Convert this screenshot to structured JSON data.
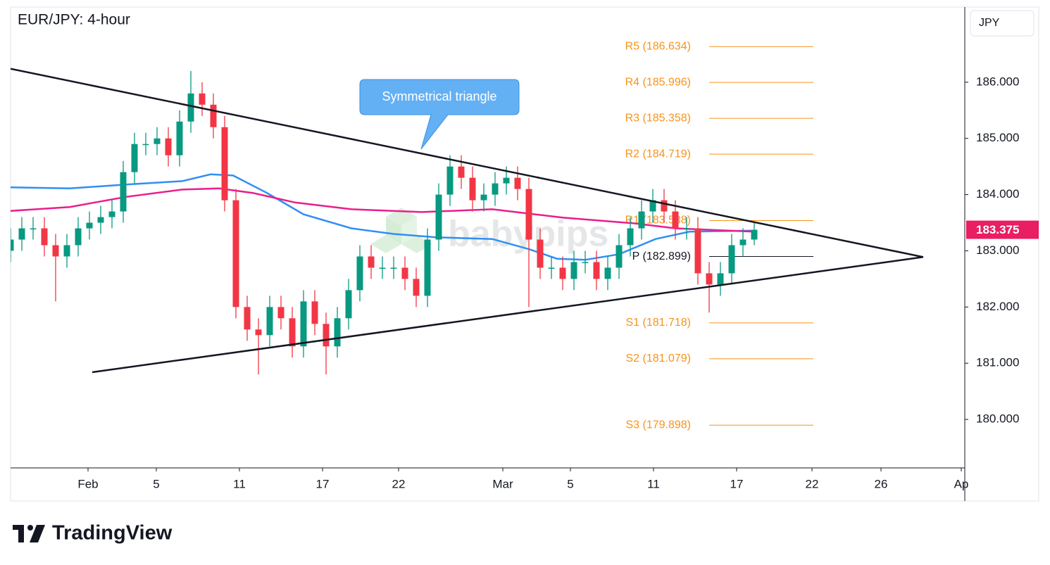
{
  "chart_data": {
    "type": "candlestick",
    "title": "EUR/JPY: 4-hour",
    "currency": "JPY",
    "watermark": "babypips",
    "brand": "TradingView",
    "annotation": "Symmetrical triangle",
    "xlim": [
      0,
      338.75
    ],
    "ylim": [
      179.1375,
      187.3375
    ],
    "xticks": [
      {
        "value": 27.5,
        "label": "Feb"
      },
      {
        "value": 51.75,
        "label": "5"
      },
      {
        "value": 81.25,
        "label": "11"
      },
      {
        "value": 110.75,
        "label": "17"
      },
      {
        "value": 137.75,
        "label": "22"
      },
      {
        "value": 174.75,
        "label": "Mar"
      },
      {
        "value": 198.75,
        "label": "5"
      },
      {
        "value": 228.25,
        "label": "11"
      },
      {
        "value": 257.75,
        "label": "17"
      },
      {
        "value": 284.5,
        "label": "22"
      },
      {
        "value": 309,
        "label": "26"
      },
      {
        "value": 337.5,
        "label": "Ap"
      }
    ],
    "yticks": [
      {
        "value": 180,
        "label": "180.000"
      },
      {
        "value": 181,
        "label": "181.000"
      },
      {
        "value": 182,
        "label": "182.000"
      },
      {
        "value": 183,
        "label": "183.000"
      },
      {
        "value": 184,
        "label": "184.000"
      },
      {
        "value": 185,
        "label": "185.000"
      },
      {
        "value": 186,
        "label": "186.000"
      }
    ],
    "up_color": "#089981",
    "down_color": "#f23645",
    "x": [
      0,
      4,
      8,
      12,
      16,
      20,
      24,
      28,
      32,
      36,
      40,
      44,
      48,
      52,
      56,
      60,
      64,
      68,
      72,
      76,
      80,
      84,
      88,
      92,
      96,
      100,
      104,
      108,
      112,
      116,
      120,
      124,
      128,
      132,
      136,
      140,
      144,
      148,
      152,
      156,
      160,
      164,
      168,
      172,
      176,
      180,
      184,
      188,
      192,
      196,
      200,
      204,
      208,
      212,
      216,
      220,
      224,
      228,
      232,
      236,
      240,
      244,
      248,
      252,
      256,
      260,
      264
    ],
    "open": [
      183.0,
      183.2,
      183.4,
      183.4,
      183.1,
      182.9,
      183.1,
      183.4,
      183.5,
      183.6,
      183.7,
      184.4,
      184.9,
      184.9,
      185.0,
      184.7,
      185.3,
      185.8,
      185.6,
      185.2,
      183.9,
      182.0,
      181.6,
      181.5,
      182.0,
      181.8,
      181.3,
      182.1,
      181.7,
      181.3,
      181.8,
      182.3,
      182.9,
      182.7,
      182.7,
      182.7,
      182.5,
      182.2,
      183.2,
      184.0,
      184.5,
      184.3,
      183.9,
      184.0,
      184.2,
      184.3,
      184.1,
      183.2,
      182.7,
      182.7,
      182.5,
      182.8,
      182.8,
      182.5,
      182.7,
      183.1,
      183.4,
      183.7,
      183.9,
      183.7,
      183.4,
      183.4,
      182.6,
      182.4,
      182.6,
      183.1,
      183.2
    ],
    "high": [
      183.4,
      183.6,
      183.6,
      183.6,
      183.3,
      183.3,
      183.6,
      183.7,
      183.8,
      183.9,
      184.6,
      185.1,
      185.1,
      185.2,
      185.2,
      185.5,
      186.2,
      186.0,
      185.8,
      185.4,
      184.1,
      182.2,
      181.8,
      182.2,
      182.2,
      182.0,
      182.3,
      182.3,
      181.9,
      182.0,
      182.5,
      183.1,
      183.1,
      182.9,
      182.9,
      182.9,
      182.7,
      183.4,
      184.2,
      184.7,
      184.7,
      184.5,
      184.2,
      184.4,
      184.5,
      184.5,
      184.3,
      183.4,
      182.9,
      182.9,
      183.0,
      183.0,
      183.0,
      182.9,
      183.3,
      183.6,
      183.9,
      184.1,
      184.1,
      183.9,
      183.6,
      183.6,
      182.8,
      182.8,
      183.3,
      183.4,
      183.5
    ],
    "low": [
      182.8,
      183.0,
      183.2,
      182.9,
      182.1,
      182.7,
      182.9,
      183.2,
      183.3,
      183.4,
      183.5,
      184.2,
      184.7,
      184.7,
      184.5,
      184.5,
      185.1,
      185.4,
      185.0,
      183.7,
      181.8,
      181.4,
      180.8,
      181.3,
      181.6,
      181.1,
      181.1,
      181.5,
      180.8,
      181.1,
      181.6,
      182.1,
      182.5,
      182.5,
      182.5,
      182.3,
      182.0,
      182.0,
      183.0,
      183.8,
      184.1,
      183.7,
      183.7,
      183.8,
      184.0,
      183.9,
      182.0,
      182.5,
      182.5,
      182.3,
      182.3,
      182.6,
      182.3,
      182.3,
      182.5,
      182.9,
      183.2,
      183.5,
      183.5,
      183.2,
      183.2,
      182.4,
      181.9,
      182.2,
      182.4,
      182.9,
      183.1
    ],
    "close": [
      183.2,
      183.4,
      183.4,
      183.1,
      182.9,
      183.1,
      183.4,
      183.5,
      183.6,
      183.7,
      184.4,
      184.9,
      184.9,
      185.0,
      184.7,
      185.3,
      185.8,
      185.6,
      185.2,
      183.9,
      182.0,
      181.6,
      181.5,
      182.0,
      181.8,
      181.3,
      182.1,
      181.7,
      181.3,
      181.8,
      182.3,
      182.9,
      182.7,
      182.7,
      182.7,
      182.5,
      182.2,
      183.2,
      184.0,
      184.5,
      184.3,
      183.9,
      184.0,
      184.2,
      184.3,
      184.1,
      183.2,
      182.7,
      182.7,
      182.5,
      182.8,
      182.8,
      182.5,
      182.7,
      183.1,
      183.4,
      183.7,
      183.9,
      183.7,
      183.4,
      183.4,
      182.6,
      182.4,
      182.6,
      183.1,
      183.2,
      183.375
    ],
    "last_price_color": "#e91e63",
    "lines": [
      {
        "color": "#2f8ff5",
        "x": [
          0,
          21,
          41,
          61,
          71,
          79,
          91,
          104,
          121,
          136,
          151,
          171,
          184,
          194,
          204,
          216,
          229,
          241,
          264
        ],
        "values": [
          184.13,
          184.11,
          184.18,
          184.24,
          184.36,
          184.34,
          184.03,
          183.65,
          183.4,
          183.3,
          183.24,
          183.21,
          183.03,
          182.86,
          182.84,
          182.94,
          183.21,
          183.34,
          183.36
        ]
      },
      {
        "color": "#e91e8c",
        "x": [
          0,
          21,
          41,
          61,
          74,
          86,
          101,
          121,
          146,
          171,
          196,
          221,
          236,
          264
        ],
        "values": [
          183.71,
          183.78,
          183.96,
          184.09,
          184.11,
          184.03,
          183.86,
          183.74,
          183.69,
          183.74,
          183.59,
          183.49,
          183.4,
          183.34
        ]
      }
    ],
    "trendlines": [
      {
        "color": "#131722",
        "x": [
          0,
          324
        ],
        "values": [
          186.24,
          182.89
        ]
      },
      {
        "color": "#131722",
        "x": [
          29,
          324
        ],
        "values": [
          180.84,
          182.89
        ]
      }
    ],
    "pivots": {
      "x": [
        248,
        285
      ],
      "levels": [
        {
          "label": "R5 (186.634)",
          "value": 186.634,
          "color": "#f7931a"
        },
        {
          "label": "R4 (185.996)",
          "value": 185.996,
          "color": "#f7931a"
        },
        {
          "label": "R3 (185.358)",
          "value": 185.358,
          "color": "#f7931a"
        },
        {
          "label": "R2 (184.719)",
          "value": 184.719,
          "color": "#f7931a"
        },
        {
          "label": "R1 (183.538)",
          "value": 183.538,
          "color": "#f7931a"
        },
        {
          "label": "P (182.899)",
          "value": 182.899,
          "color": "#131722"
        },
        {
          "label": "S1 (181.718)",
          "value": 181.718,
          "color": "#f7931a"
        },
        {
          "label": "S2 (181.079)",
          "value": 181.079,
          "color": "#f7931a"
        },
        {
          "label": "S3 (179.898)",
          "value": 179.898,
          "color": "#f7931a"
        }
      ]
    }
  }
}
